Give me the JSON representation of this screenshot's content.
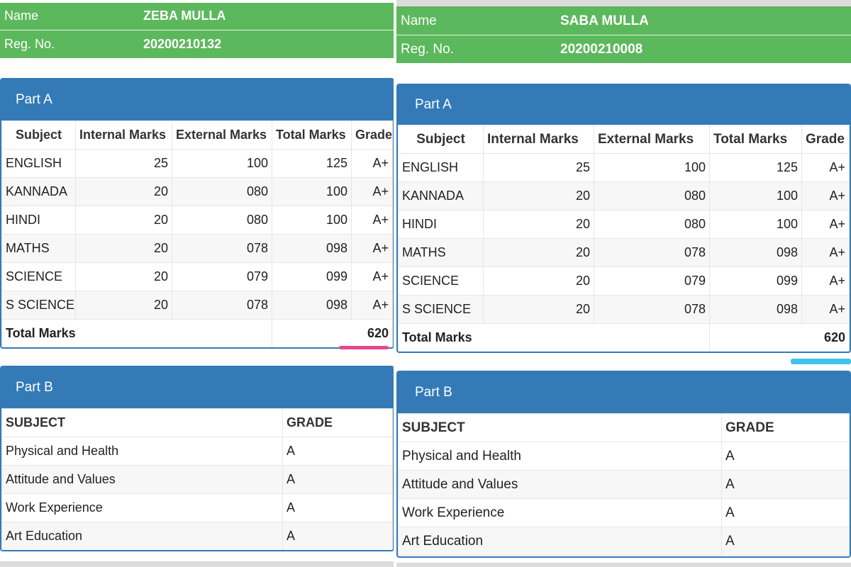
{
  "left": {
    "student": {
      "name_label": "Name",
      "name": "ZEBA MULLA",
      "reg_label": "Reg. No.",
      "reg_no": "20200210132"
    },
    "part_a": {
      "title": "Part A",
      "headers": [
        "Subject",
        "Internal Marks",
        "External Marks",
        "Total Marks",
        "Grade"
      ],
      "rows": [
        [
          "ENGLISH",
          "25",
          "100",
          "125",
          "A+"
        ],
        [
          "KANNADA",
          "20",
          "080",
          "100",
          "A+"
        ],
        [
          "HINDI",
          "20",
          "080",
          "100",
          "A+"
        ],
        [
          "MATHS",
          "20",
          "078",
          "098",
          "A+"
        ],
        [
          "SCIENCE",
          "20",
          "079",
          "099",
          "A+"
        ],
        [
          "S SCIENCE",
          "20",
          "078",
          "098",
          "A+"
        ]
      ],
      "total_label": "Total Marks",
      "total_value": "620"
    },
    "part_b": {
      "title": "Part B",
      "headers": [
        "SUBJECT",
        "GRADE"
      ],
      "rows": [
        [
          "Physical and Health",
          "A"
        ],
        [
          "Attitude and Values",
          "A"
        ],
        [
          "Work Experience",
          "A"
        ],
        [
          "Art Education",
          "A"
        ]
      ]
    },
    "highlight_color": "#e8488a"
  },
  "right": {
    "student": {
      "name_label": "Name",
      "name": "SABA MULLA",
      "reg_label": "Reg. No.",
      "reg_no": "20200210008"
    },
    "part_a": {
      "title": "Part A",
      "headers": [
        "Subject",
        "Internal Marks",
        "External Marks",
        "Total Marks",
        "Grade"
      ],
      "rows": [
        [
          "ENGLISH",
          "25",
          "100",
          "125",
          "A+"
        ],
        [
          "KANNADA",
          "20",
          "080",
          "100",
          "A+"
        ],
        [
          "HINDI",
          "20",
          "080",
          "100",
          "A+"
        ],
        [
          "MATHS",
          "20",
          "078",
          "098",
          "A+"
        ],
        [
          "SCIENCE",
          "20",
          "079",
          "099",
          "A+"
        ],
        [
          "S SCIENCE",
          "20",
          "078",
          "098",
          "A+"
        ]
      ],
      "total_label": "Total Marks",
      "total_value": "620"
    },
    "part_b": {
      "title": "Part B",
      "headers": [
        "SUBJECT",
        "GRADE"
      ],
      "rows": [
        [
          "Physical and Health",
          "A"
        ],
        [
          "Attitude and Values",
          "A"
        ],
        [
          "Work Experience",
          "A"
        ],
        [
          "Art Education",
          "A"
        ]
      ]
    },
    "highlight_color": "#3ec3e8"
  },
  "colors": {
    "header_green": "#5cb85c",
    "panel_blue": "#337ab7"
  }
}
